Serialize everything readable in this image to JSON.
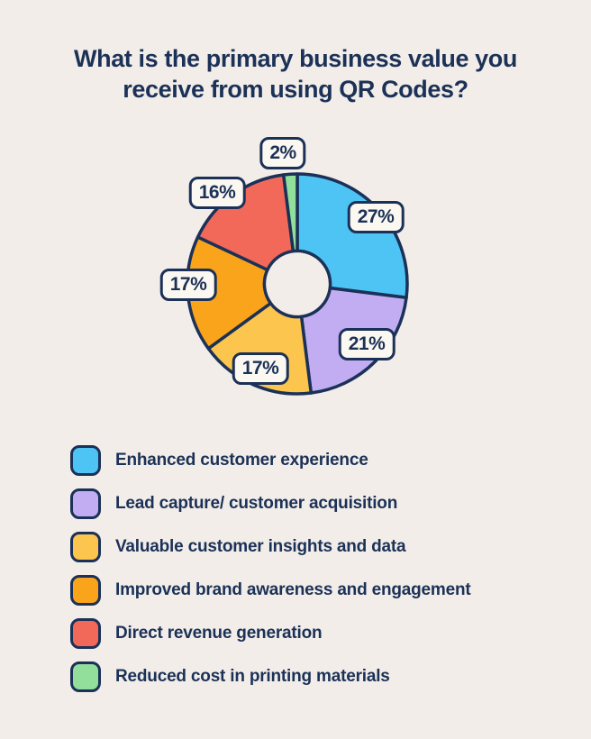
{
  "title": {
    "line1": "What is the primary business value you",
    "line2": "receive from using QR Codes?"
  },
  "colors": {
    "background": "#F2EDE8",
    "navy": "#1B3157",
    "badge_bg": "#FBF7F1"
  },
  "chart_data": {
    "type": "pie",
    "donut": true,
    "title": "What is the primary business value you receive from using QR Codes?",
    "start_angle_deg": 0,
    "direction": "clockwise",
    "inner_radius_ratio": 0.3,
    "legend_position": "bottom-left",
    "segments": [
      {
        "label": "Enhanced customer experience",
        "value": 27,
        "pct": "27%",
        "color": "#4EC4F4"
      },
      {
        "label": "Lead capture/ customer acquisition",
        "value": 21,
        "pct": "21%",
        "color": "#C2ADF2"
      },
      {
        "label": "Valuable customer insights and data",
        "value": 17,
        "pct": "17%",
        "color": "#FBC54E"
      },
      {
        "label": "Improved brand awareness and engagement",
        "value": 17,
        "pct": "17%",
        "color": "#F9A41A"
      },
      {
        "label": "Direct revenue generation",
        "value": 16,
        "pct": "16%",
        "color": "#F2695A"
      },
      {
        "label": "Reduced cost in printing materials",
        "value": 2,
        "pct": "2%",
        "color": "#92DF9B"
      }
    ]
  }
}
